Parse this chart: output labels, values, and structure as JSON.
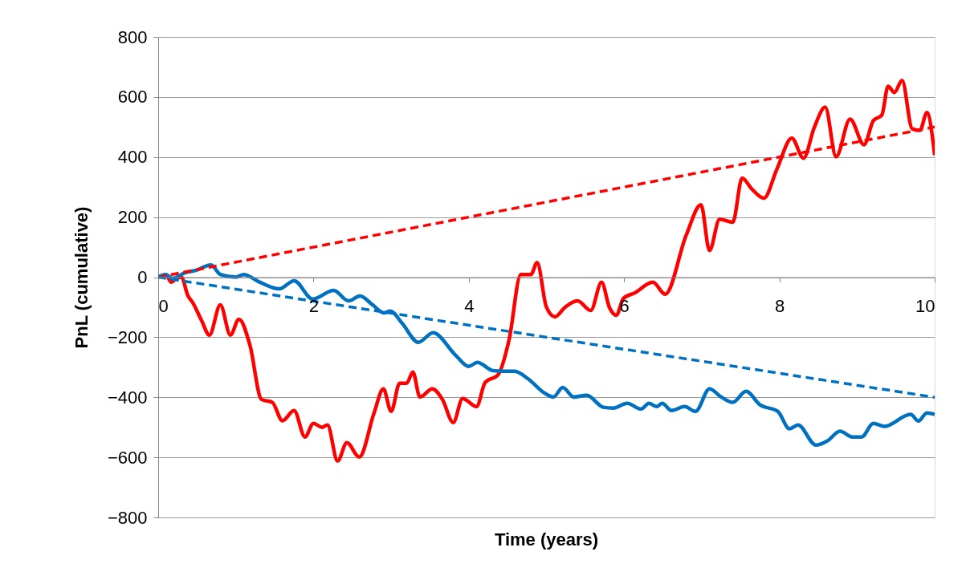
{
  "chart_data": {
    "type": "line",
    "xlabel": "Time (years)",
    "ylabel": "PnL (cumulative)",
    "xlim": [
      0,
      10
    ],
    "xticks": [
      0,
      2,
      4,
      6,
      8,
      10
    ],
    "ylim": [
      -800,
      800
    ],
    "yticks": [
      -800,
      -600,
      -400,
      -200,
      0,
      200,
      400,
      600,
      800
    ],
    "grid": "y",
    "marker": "none",
    "series": [
      {
        "color": "#ff0000",
        "line_style": "solid",
        "x": [
          0,
          0.1,
          0.17,
          0.23,
          0.3,
          0.38,
          0.45,
          0.56,
          0.66,
          0.8,
          0.93,
          1.04,
          1.18,
          1.33,
          1.47,
          1.6,
          1.75,
          1.89,
          2.0,
          2.11,
          2.18,
          2.31,
          2.43,
          2.59,
          2.78,
          2.9,
          3.0,
          3.11,
          3.2,
          3.28,
          3.37,
          3.53,
          3.66,
          3.8,
          3.92,
          4.1,
          4.21,
          4.38,
          4.52,
          4.67,
          4.8,
          4.88,
          5.0,
          5.11,
          5.24,
          5.4,
          5.57,
          5.71,
          5.81,
          5.9,
          5.99,
          6.14,
          6.37,
          6.53,
          6.8,
          6.99,
          7.1,
          7.23,
          7.4,
          7.52,
          7.64,
          7.8,
          7.97,
          8.16,
          8.31,
          8.45,
          8.59,
          8.73,
          8.91,
          9.09,
          9.21,
          9.32,
          9.4,
          9.48,
          9.58,
          9.71,
          9.81,
          9.9,
          10
        ],
        "values": [
          0,
          8,
          -17,
          -5,
          0,
          -60,
          -87,
          -145,
          -193,
          -92,
          -193,
          -140,
          -225,
          -407,
          -417,
          -478,
          -444,
          -532,
          -487,
          -500,
          -492,
          -612,
          -551,
          -599,
          -452,
          -372,
          -447,
          -353,
          -353,
          -316,
          -399,
          -372,
          -407,
          -484,
          -404,
          -431,
          -351,
          -324,
          -207,
          9,
          9,
          49,
          -100,
          -132,
          -100,
          -79,
          -111,
          -17,
          -100,
          -127,
          -71,
          -52,
          -17,
          -57,
          140,
          241,
          89,
          193,
          183,
          330,
          295,
          263,
          361,
          463,
          396,
          499,
          566,
          401,
          526,
          441,
          521,
          540,
          636,
          615,
          655,
          494,
          489,
          548,
          406
        ]
      },
      {
        "color": "#0070c0",
        "line_style": "solid",
        "x": [
          0,
          0.1,
          0.18,
          0.35,
          0.49,
          0.68,
          0.8,
          1.0,
          1.1,
          1.31,
          1.56,
          1.75,
          1.99,
          2.26,
          2.45,
          2.6,
          2.76,
          2.91,
          2.99,
          3.14,
          3.35,
          3.54,
          3.83,
          4.0,
          4.11,
          4.31,
          4.44,
          4.59,
          4.77,
          4.97,
          5.09,
          5.21,
          5.35,
          5.52,
          5.73,
          5.86,
          6.04,
          6.22,
          6.32,
          6.42,
          6.49,
          6.61,
          6.78,
          6.92,
          7.1,
          7.25,
          7.4,
          7.57,
          7.75,
          7.98,
          8.13,
          8.24,
          8.47,
          8.62,
          8.78,
          8.94,
          9.06,
          9.21,
          9.35,
          9.69,
          9.79,
          9.9,
          10
        ],
        "values": [
          0,
          9,
          -4,
          15,
          23,
          41,
          9,
          0,
          9,
          -17,
          -39,
          -12,
          -73,
          -44,
          -79,
          -63,
          -92,
          -119,
          -113,
          -153,
          -217,
          -185,
          -260,
          -297,
          -284,
          -311,
          -313,
          -313,
          -340,
          -385,
          -399,
          -367,
          -399,
          -393,
          -433,
          -436,
          -420,
          -439,
          -420,
          -431,
          -420,
          -444,
          -431,
          -447,
          -372,
          -399,
          -417,
          -380,
          -425,
          -447,
          -505,
          -492,
          -559,
          -545,
          -513,
          -532,
          -532,
          -487,
          -497,
          -457,
          -479,
          -452,
          -457
        ]
      },
      {
        "color": "#ff0000",
        "line_style": "dashed",
        "x": [
          0,
          10
        ],
        "values": [
          0,
          500
        ]
      },
      {
        "color": "#0070c0",
        "line_style": "dashed",
        "x": [
          0,
          10
        ],
        "values": [
          0,
          -400
        ]
      }
    ]
  }
}
